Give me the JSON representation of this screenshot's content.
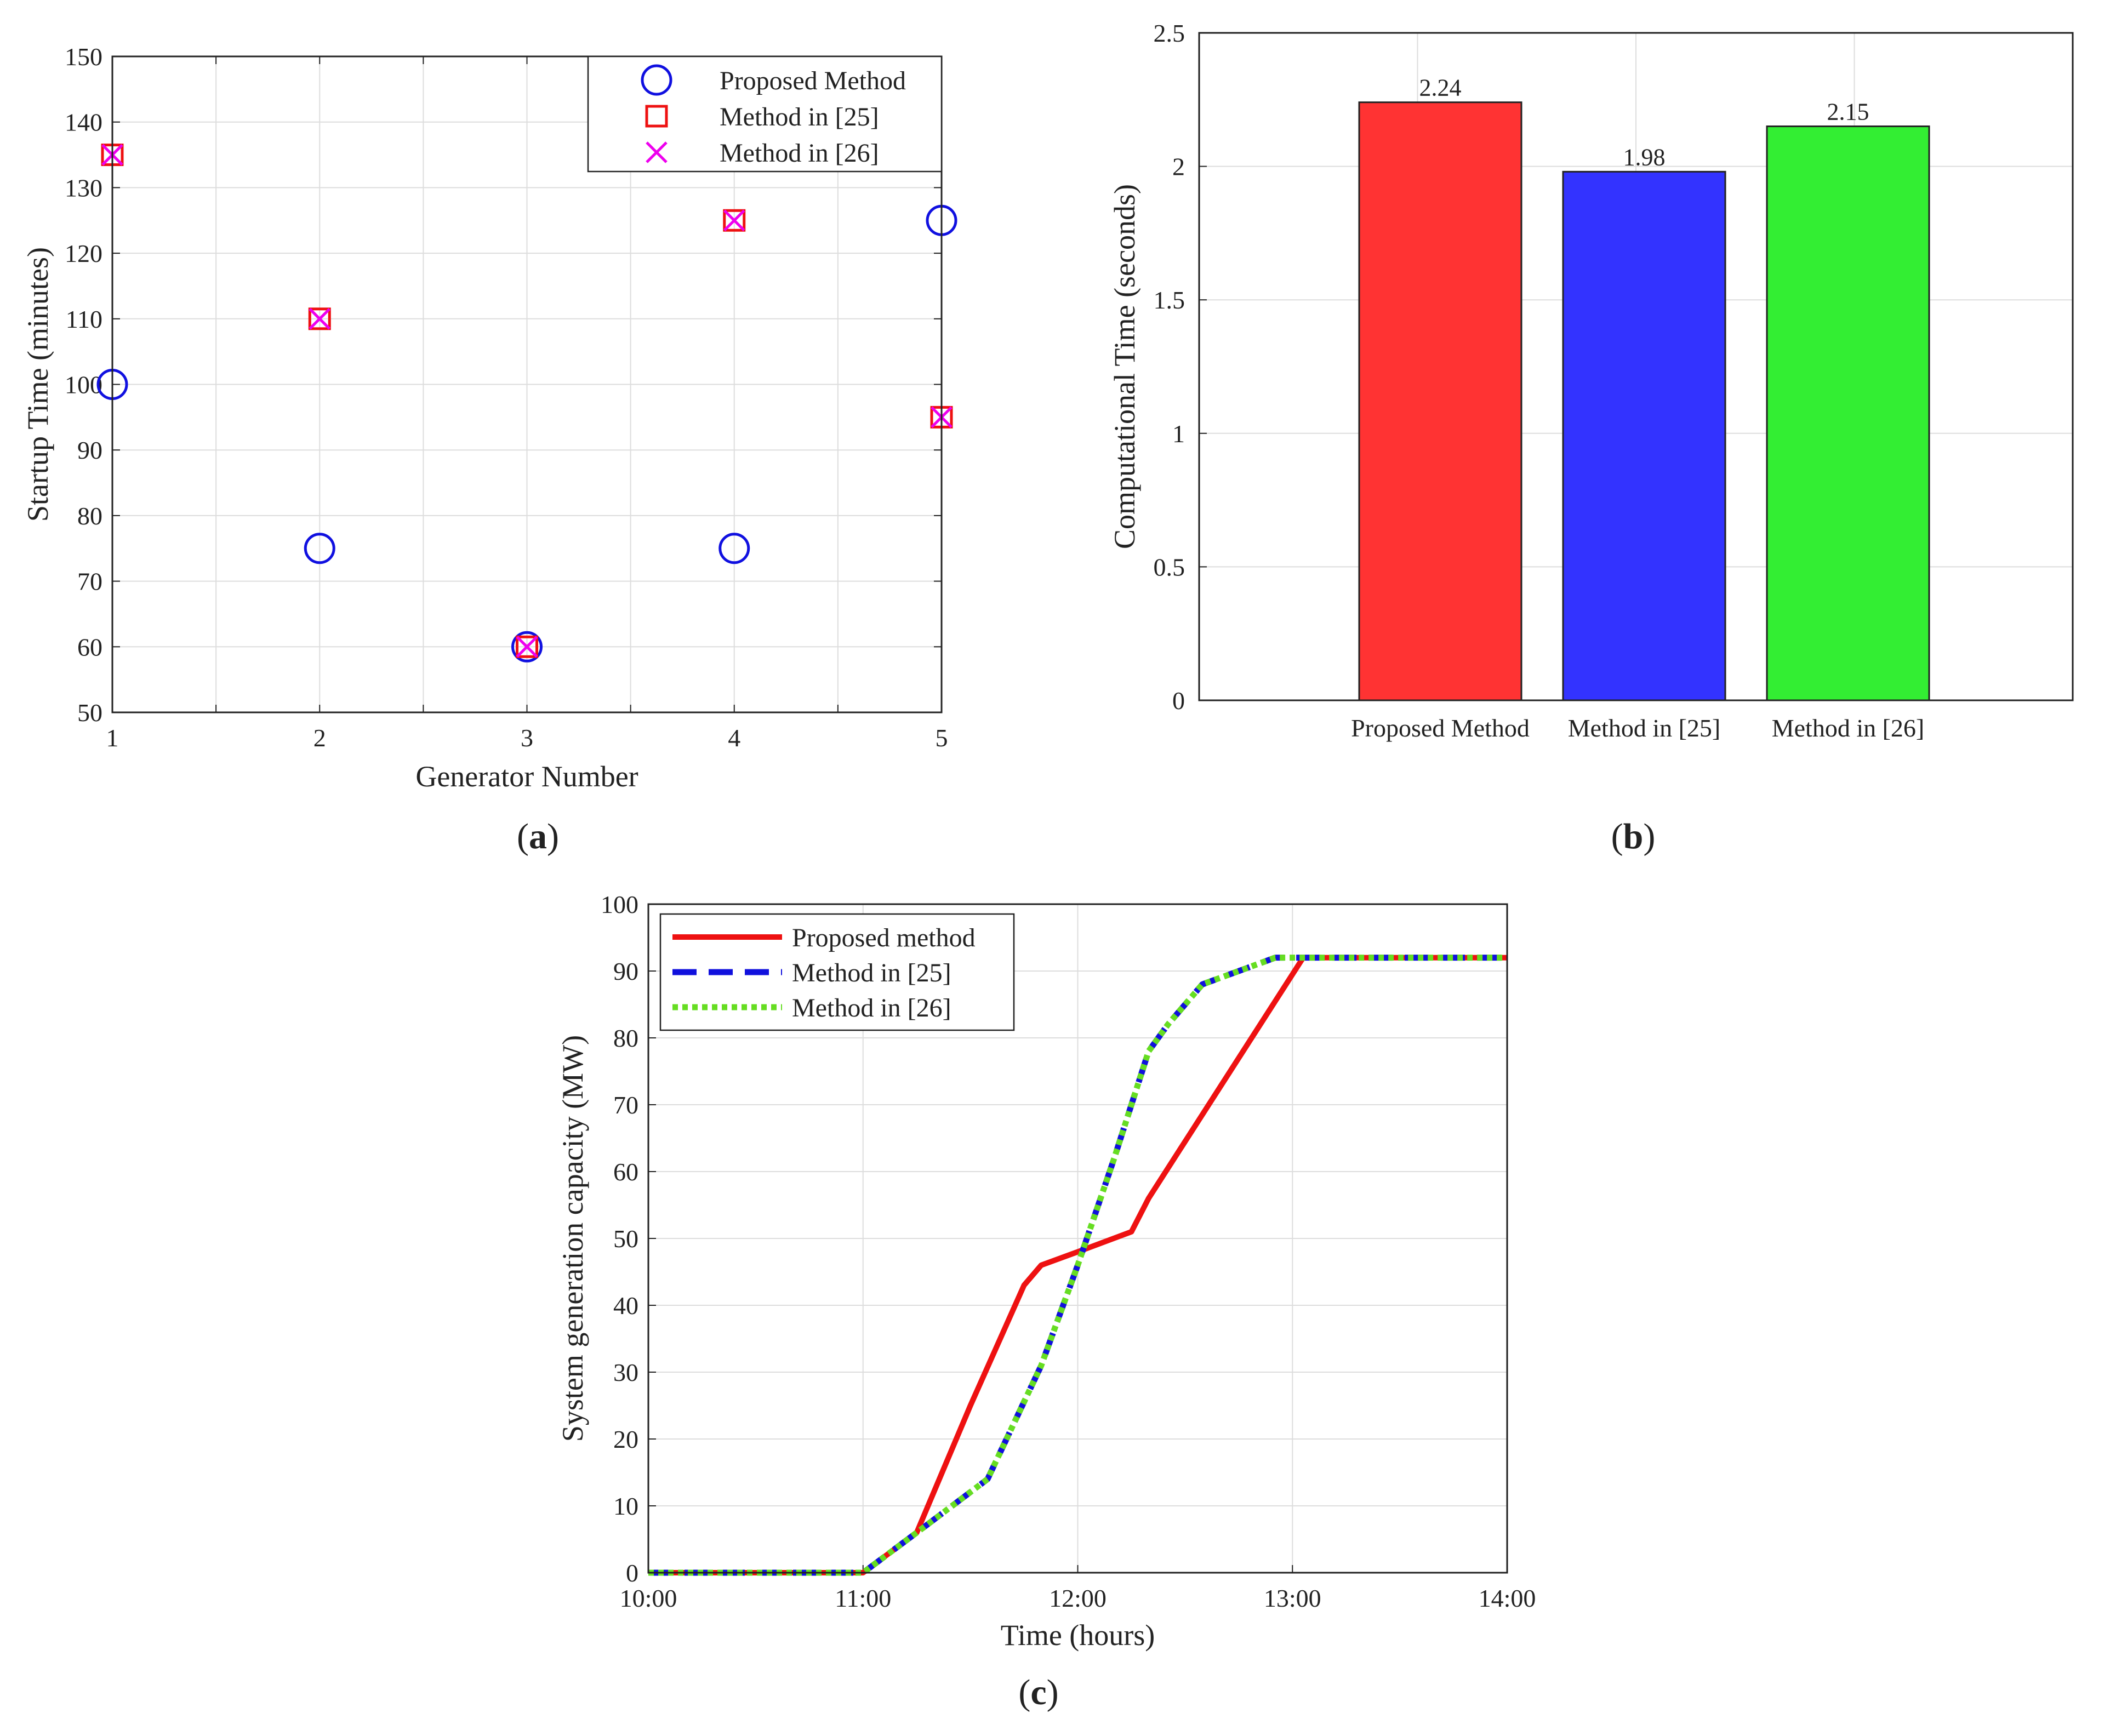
{
  "chart_data": [
    {
      "id": "a",
      "type": "scatter",
      "panel_label": {
        "open": "(",
        "letter": "a",
        "close": ")"
      },
      "xlabel": "Generator Number",
      "ylabel": "Startup Time (minutes)",
      "xlim": [
        1,
        5
      ],
      "ylim": [
        50,
        150
      ],
      "xticks": [
        1,
        2,
        3,
        4,
        5
      ],
      "yticks": [
        50,
        60,
        70,
        80,
        90,
        100,
        110,
        120,
        130,
        140,
        150
      ],
      "grid": true,
      "legend_position": "top-right",
      "series": [
        {
          "name": "Proposed Method",
          "marker": "circle",
          "color": "#1010e0",
          "x": [
            1,
            2,
            3,
            4,
            5
          ],
          "y": [
            100,
            75,
            60,
            75,
            125
          ]
        },
        {
          "name": "Method in [25]",
          "marker": "square",
          "color": "#ee1111",
          "x": [
            1,
            2,
            3,
            4,
            5
          ],
          "y": [
            135,
            110,
            60,
            125,
            95
          ]
        },
        {
          "name": "Method in [26]",
          "marker": "x",
          "color": "#ee00ee",
          "x": [
            1,
            2,
            3,
            4,
            5
          ],
          "y": [
            135,
            110,
            60,
            125,
            95
          ]
        }
      ]
    },
    {
      "id": "b",
      "type": "bar",
      "panel_label": {
        "open": "(",
        "letter": "b",
        "close": ")"
      },
      "xlabel": "",
      "ylabel": "Computational Time (seconds)",
      "ylim": [
        0,
        2.5
      ],
      "yticks": [
        "0",
        "0.5",
        "1",
        "1.5",
        "2",
        "2.5"
      ],
      "grid": true,
      "categories": [
        "Proposed Method",
        "Method in [25]",
        "Method in [26]"
      ],
      "values": [
        2.24,
        1.98,
        2.15
      ],
      "value_labels": [
        "2.24",
        "1.98",
        "2.15"
      ],
      "colors": [
        "#ff3333",
        "#3333ff",
        "#33ee33"
      ]
    },
    {
      "id": "c",
      "type": "line",
      "panel_label": {
        "open": "(",
        "letter": "c",
        "close": ")"
      },
      "xlabel": "Time (hours)",
      "ylabel": "System generation capacity (MW)",
      "xlim": [
        10,
        14
      ],
      "ylim": [
        0,
        100
      ],
      "xticks": [
        10,
        11,
        12,
        13,
        14
      ],
      "xtick_labels": [
        "10:00",
        "11:00",
        "12:00",
        "13:00",
        "14:00"
      ],
      "yticks": [
        0,
        10,
        20,
        30,
        40,
        50,
        60,
        70,
        80,
        90,
        100
      ],
      "grid": true,
      "legend_position": "top-left",
      "series": [
        {
          "name": "Proposed method",
          "color": "#ee1111",
          "style": "solid",
          "x": [
            10,
            11,
            11.25,
            11.5,
            11.75,
            11.83,
            12,
            12.25,
            12.33,
            13.05,
            14
          ],
          "y": [
            0,
            0,
            6,
            25,
            43,
            46,
            48,
            51,
            56,
            92,
            92
          ]
        },
        {
          "name": "Method in [25]",
          "color": "#1010dd",
          "style": "dashed",
          "x": [
            10,
            11,
            11.25,
            11.58,
            11.83,
            12,
            12.17,
            12.33,
            12.42,
            12.58,
            12.92,
            13,
            14
          ],
          "y": [
            0,
            0,
            6,
            14,
            31,
            46,
            62,
            78,
            82,
            88,
            92,
            92,
            92
          ]
        },
        {
          "name": "Method in [26]",
          "color": "#66dd22",
          "style": "dotted",
          "x": [
            10,
            11,
            11.25,
            11.58,
            11.83,
            12,
            12.17,
            12.33,
            12.42,
            12.58,
            12.92,
            13,
            14
          ],
          "y": [
            0,
            0,
            6,
            14,
            31,
            46,
            62,
            78,
            82,
            88,
            92,
            92,
            92
          ]
        }
      ]
    }
  ]
}
